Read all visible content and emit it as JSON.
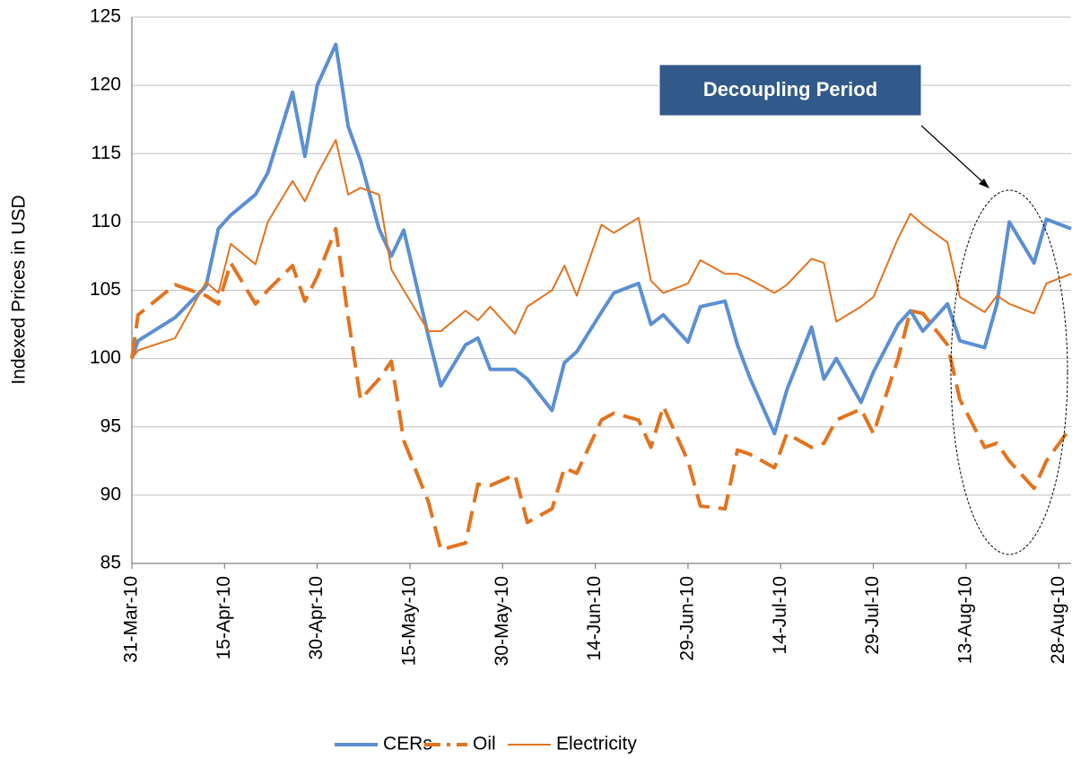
{
  "chart_data": {
    "type": "line",
    "y_label": "Indexed Prices in USD",
    "x": [
      "2010-03-31",
      "2010-04-01",
      "2010-04-07",
      "2010-04-12",
      "2010-04-14",
      "2010-04-16",
      "2010-04-20",
      "2010-04-22",
      "2010-04-26",
      "2010-04-28",
      "2010-04-30",
      "2010-05-03",
      "2010-05-05",
      "2010-05-07",
      "2010-05-10",
      "2010-05-12",
      "2010-05-14",
      "2010-05-18",
      "2010-05-20",
      "2010-05-24",
      "2010-05-26",
      "2010-05-28",
      "2010-06-01",
      "2010-06-03",
      "2010-06-07",
      "2010-06-09",
      "2010-06-11",
      "2010-06-15",
      "2010-06-17",
      "2010-06-21",
      "2010-06-23",
      "2010-06-25",
      "2010-06-29",
      "2010-07-01",
      "2010-07-05",
      "2010-07-07",
      "2010-07-09",
      "2010-07-13",
      "2010-07-15",
      "2010-07-19",
      "2010-07-21",
      "2010-07-23",
      "2010-07-27",
      "2010-07-29",
      "2010-08-02",
      "2010-08-04",
      "2010-08-06",
      "2010-08-10",
      "2010-08-12",
      "2010-08-16",
      "2010-08-18",
      "2010-08-20",
      "2010-08-24",
      "2010-08-26",
      "2010-08-30"
    ],
    "series": [
      {
        "name": "CERs",
        "color": "#5b8fd4",
        "dashed": false,
        "values": [
          100,
          101.3,
          103,
          105.3,
          109.5,
          110.5,
          112,
          113.6,
          119.5,
          114.8,
          120,
          123,
          117,
          114.5,
          109.5,
          107.5,
          109.4,
          101.6,
          98,
          101,
          101.5,
          99.2,
          99.2,
          98.5,
          96.2,
          99.7,
          100.5,
          103.4,
          104.8,
          105.5,
          102.5,
          103.2,
          101.2,
          103.8,
          104.2,
          101,
          98.6,
          94.5,
          97.7,
          102.3,
          98.5,
          100,
          96.8,
          99,
          102.5,
          103.5,
          102,
          104,
          101.3,
          100.8,
          104,
          110,
          107,
          110.2,
          109.5
        ]
      },
      {
        "name": "Oil",
        "color": "#e3731f",
        "dashed": true,
        "values": [
          100,
          103.2,
          105.4,
          104.6,
          104,
          107,
          104,
          105,
          106.8,
          104.2,
          106,
          109.5,
          103,
          97,
          98.5,
          99.8,
          94,
          89.5,
          86,
          86.5,
          90.8,
          90.7,
          91.5,
          88,
          89,
          92,
          91.6,
          95.5,
          96,
          95.5,
          93.5,
          96.5,
          92.5,
          89.2,
          89,
          93.3,
          93,
          92,
          94.5,
          93.5,
          93.8,
          95.5,
          96.3,
          94.5,
          100,
          103.5,
          103.3,
          101,
          97,
          93.5,
          93.8,
          92.5,
          90.5,
          92.5,
          95
        ]
      },
      {
        "name": "Electricity",
        "color": "#e3731f",
        "dashed": false,
        "values": [
          100,
          100.6,
          101.5,
          105.6,
          104.8,
          108.4,
          106.9,
          110,
          113,
          111.5,
          113.5,
          116,
          112,
          112.5,
          112,
          106.5,
          105,
          102,
          102,
          103.5,
          102.8,
          103.8,
          101.8,
          103.8,
          105,
          106.8,
          104.6,
          109.8,
          109.2,
          110.3,
          105.7,
          104.8,
          105.5,
          107.2,
          106.2,
          106.2,
          105.8,
          104.8,
          105.4,
          107.3,
          107,
          102.7,
          103.8,
          104.5,
          108.8,
          110.6,
          109.8,
          108.5,
          104.5,
          103.4,
          104.6,
          104,
          103.3,
          105.5,
          106.2
        ]
      }
    ],
    "xlim": [
      "2010-03-31",
      "2010-08-30"
    ],
    "xticks": [
      {
        "value": "2010-03-31",
        "label": "31-Mar-10"
      },
      {
        "value": "2010-04-15",
        "label": "15-Apr-10"
      },
      {
        "value": "2010-04-30",
        "label": "30-Apr-10"
      },
      {
        "value": "2010-05-15",
        "label": "15-May-10"
      },
      {
        "value": "2010-05-30",
        "label": "30-May-10"
      },
      {
        "value": "2010-06-14",
        "label": "14-Jun-10"
      },
      {
        "value": "2010-06-29",
        "label": "29-Jun-10"
      },
      {
        "value": "2010-07-14",
        "label": "14-Jul-10"
      },
      {
        "value": "2010-07-29",
        "label": "29-Jul-10"
      },
      {
        "value": "2010-08-13",
        "label": "13-Aug-10"
      },
      {
        "value": "2010-08-28",
        "label": "28-Aug-10"
      }
    ],
    "ylim": [
      85,
      125
    ],
    "yticks": [
      85,
      90,
      95,
      100,
      105,
      110,
      115,
      120,
      125
    ],
    "grid": true,
    "legend": "bottom",
    "annotations": [
      {
        "text": "Decoupling Period"
      }
    ]
  }
}
